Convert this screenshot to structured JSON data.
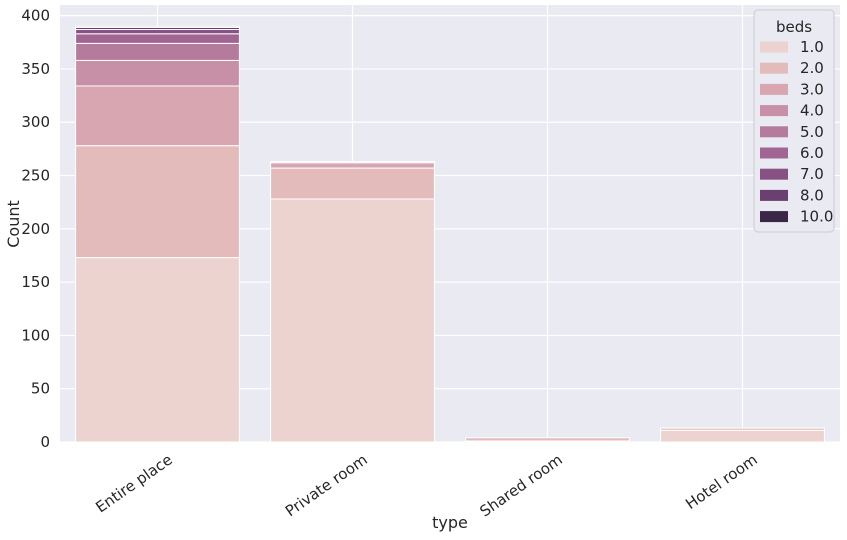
{
  "chart_data": {
    "type": "bar",
    "stacked": true,
    "xlabel": "type",
    "ylabel": "Count",
    "categories": [
      "Entire place",
      "Private room",
      "Shared room",
      "Hotel room"
    ],
    "ylim": [
      0,
      410
    ],
    "yticks": [
      0,
      50,
      100,
      150,
      200,
      250,
      300,
      350,
      400
    ],
    "grid": true,
    "legend": {
      "title": "beds",
      "placement": "top-right"
    },
    "series": [
      {
        "name": "1.0",
        "color": "#ecd3cf",
        "values": [
          173,
          228,
          1,
          11
        ]
      },
      {
        "name": "2.0",
        "color": "#e3bbbb",
        "values": [
          105,
          29,
          3,
          2
        ]
      },
      {
        "name": "3.0",
        "color": "#d8a6b0",
        "values": [
          56,
          5,
          0,
          0
        ]
      },
      {
        "name": "4.0",
        "color": "#c790a6",
        "values": [
          24,
          1,
          0,
          0
        ]
      },
      {
        "name": "5.0",
        "color": "#b57b9d",
        "values": [
          16,
          0,
          0,
          0
        ]
      },
      {
        "name": "6.0",
        "color": "#a06592",
        "values": [
          9,
          0,
          0,
          0
        ]
      },
      {
        "name": "7.0",
        "color": "#875183",
        "values": [
          4,
          0,
          0,
          0
        ]
      },
      {
        "name": "8.0",
        "color": "#6b3f70",
        "values": [
          2,
          0,
          0,
          0
        ]
      },
      {
        "name": "10.0",
        "color": "#3b2847",
        "values": [
          1,
          0,
          0,
          0
        ]
      }
    ]
  }
}
